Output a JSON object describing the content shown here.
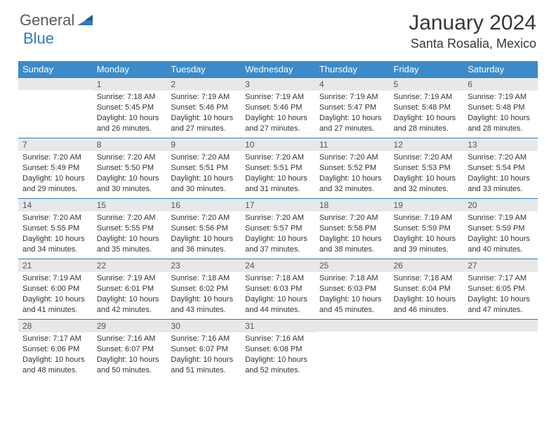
{
  "brand": {
    "general": "General",
    "blue": "Blue"
  },
  "title": "January 2024",
  "location": "Santa Rosalia, Mexico",
  "colors": {
    "header_bg": "#3a8bc9",
    "header_text": "#ffffff",
    "row_border": "#2f7ac0",
    "daynum_bg": "#e8e8e8",
    "text": "#333333",
    "logo_gray": "#5a5a5a",
    "logo_blue": "#2f7ac0",
    "page_bg": "#ffffff"
  },
  "fonts": {
    "title_size": 30,
    "location_size": 18,
    "weekday_size": 13,
    "daynum_size": 12,
    "cell_size": 11
  },
  "weekdays": [
    "Sunday",
    "Monday",
    "Tuesday",
    "Wednesday",
    "Thursday",
    "Friday",
    "Saturday"
  ],
  "weeks": [
    [
      {
        "n": "",
        "sunrise": "",
        "sunset": "",
        "daylight": ""
      },
      {
        "n": "1",
        "sunrise": "Sunrise: 7:18 AM",
        "sunset": "Sunset: 5:45 PM",
        "daylight": "Daylight: 10 hours and 26 minutes."
      },
      {
        "n": "2",
        "sunrise": "Sunrise: 7:19 AM",
        "sunset": "Sunset: 5:46 PM",
        "daylight": "Daylight: 10 hours and 27 minutes."
      },
      {
        "n": "3",
        "sunrise": "Sunrise: 7:19 AM",
        "sunset": "Sunset: 5:46 PM",
        "daylight": "Daylight: 10 hours and 27 minutes."
      },
      {
        "n": "4",
        "sunrise": "Sunrise: 7:19 AM",
        "sunset": "Sunset: 5:47 PM",
        "daylight": "Daylight: 10 hours and 27 minutes."
      },
      {
        "n": "5",
        "sunrise": "Sunrise: 7:19 AM",
        "sunset": "Sunset: 5:48 PM",
        "daylight": "Daylight: 10 hours and 28 minutes."
      },
      {
        "n": "6",
        "sunrise": "Sunrise: 7:19 AM",
        "sunset": "Sunset: 5:48 PM",
        "daylight": "Daylight: 10 hours and 28 minutes."
      }
    ],
    [
      {
        "n": "7",
        "sunrise": "Sunrise: 7:20 AM",
        "sunset": "Sunset: 5:49 PM",
        "daylight": "Daylight: 10 hours and 29 minutes."
      },
      {
        "n": "8",
        "sunrise": "Sunrise: 7:20 AM",
        "sunset": "Sunset: 5:50 PM",
        "daylight": "Daylight: 10 hours and 30 minutes."
      },
      {
        "n": "9",
        "sunrise": "Sunrise: 7:20 AM",
        "sunset": "Sunset: 5:51 PM",
        "daylight": "Daylight: 10 hours and 30 minutes."
      },
      {
        "n": "10",
        "sunrise": "Sunrise: 7:20 AM",
        "sunset": "Sunset: 5:51 PM",
        "daylight": "Daylight: 10 hours and 31 minutes."
      },
      {
        "n": "11",
        "sunrise": "Sunrise: 7:20 AM",
        "sunset": "Sunset: 5:52 PM",
        "daylight": "Daylight: 10 hours and 32 minutes."
      },
      {
        "n": "12",
        "sunrise": "Sunrise: 7:20 AM",
        "sunset": "Sunset: 5:53 PM",
        "daylight": "Daylight: 10 hours and 32 minutes."
      },
      {
        "n": "13",
        "sunrise": "Sunrise: 7:20 AM",
        "sunset": "Sunset: 5:54 PM",
        "daylight": "Daylight: 10 hours and 33 minutes."
      }
    ],
    [
      {
        "n": "14",
        "sunrise": "Sunrise: 7:20 AM",
        "sunset": "Sunset: 5:55 PM",
        "daylight": "Daylight: 10 hours and 34 minutes."
      },
      {
        "n": "15",
        "sunrise": "Sunrise: 7:20 AM",
        "sunset": "Sunset: 5:55 PM",
        "daylight": "Daylight: 10 hours and 35 minutes."
      },
      {
        "n": "16",
        "sunrise": "Sunrise: 7:20 AM",
        "sunset": "Sunset: 5:56 PM",
        "daylight": "Daylight: 10 hours and 36 minutes."
      },
      {
        "n": "17",
        "sunrise": "Sunrise: 7:20 AM",
        "sunset": "Sunset: 5:57 PM",
        "daylight": "Daylight: 10 hours and 37 minutes."
      },
      {
        "n": "18",
        "sunrise": "Sunrise: 7:20 AM",
        "sunset": "Sunset: 5:58 PM",
        "daylight": "Daylight: 10 hours and 38 minutes."
      },
      {
        "n": "19",
        "sunrise": "Sunrise: 7:19 AM",
        "sunset": "Sunset: 5:59 PM",
        "daylight": "Daylight: 10 hours and 39 minutes."
      },
      {
        "n": "20",
        "sunrise": "Sunrise: 7:19 AM",
        "sunset": "Sunset: 5:59 PM",
        "daylight": "Daylight: 10 hours and 40 minutes."
      }
    ],
    [
      {
        "n": "21",
        "sunrise": "Sunrise: 7:19 AM",
        "sunset": "Sunset: 6:00 PM",
        "daylight": "Daylight: 10 hours and 41 minutes."
      },
      {
        "n": "22",
        "sunrise": "Sunrise: 7:19 AM",
        "sunset": "Sunset: 6:01 PM",
        "daylight": "Daylight: 10 hours and 42 minutes."
      },
      {
        "n": "23",
        "sunrise": "Sunrise: 7:18 AM",
        "sunset": "Sunset: 6:02 PM",
        "daylight": "Daylight: 10 hours and 43 minutes."
      },
      {
        "n": "24",
        "sunrise": "Sunrise: 7:18 AM",
        "sunset": "Sunset: 6:03 PM",
        "daylight": "Daylight: 10 hours and 44 minutes."
      },
      {
        "n": "25",
        "sunrise": "Sunrise: 7:18 AM",
        "sunset": "Sunset: 6:03 PM",
        "daylight": "Daylight: 10 hours and 45 minutes."
      },
      {
        "n": "26",
        "sunrise": "Sunrise: 7:18 AM",
        "sunset": "Sunset: 6:04 PM",
        "daylight": "Daylight: 10 hours and 46 minutes."
      },
      {
        "n": "27",
        "sunrise": "Sunrise: 7:17 AM",
        "sunset": "Sunset: 6:05 PM",
        "daylight": "Daylight: 10 hours and 47 minutes."
      }
    ],
    [
      {
        "n": "28",
        "sunrise": "Sunrise: 7:17 AM",
        "sunset": "Sunset: 6:06 PM",
        "daylight": "Daylight: 10 hours and 48 minutes."
      },
      {
        "n": "29",
        "sunrise": "Sunrise: 7:16 AM",
        "sunset": "Sunset: 6:07 PM",
        "daylight": "Daylight: 10 hours and 50 minutes."
      },
      {
        "n": "30",
        "sunrise": "Sunrise: 7:16 AM",
        "sunset": "Sunset: 6:07 PM",
        "daylight": "Daylight: 10 hours and 51 minutes."
      },
      {
        "n": "31",
        "sunrise": "Sunrise: 7:16 AM",
        "sunset": "Sunset: 6:08 PM",
        "daylight": "Daylight: 10 hours and 52 minutes."
      },
      {
        "n": "",
        "sunrise": "",
        "sunset": "",
        "daylight": ""
      },
      {
        "n": "",
        "sunrise": "",
        "sunset": "",
        "daylight": ""
      },
      {
        "n": "",
        "sunrise": "",
        "sunset": "",
        "daylight": ""
      }
    ]
  ]
}
